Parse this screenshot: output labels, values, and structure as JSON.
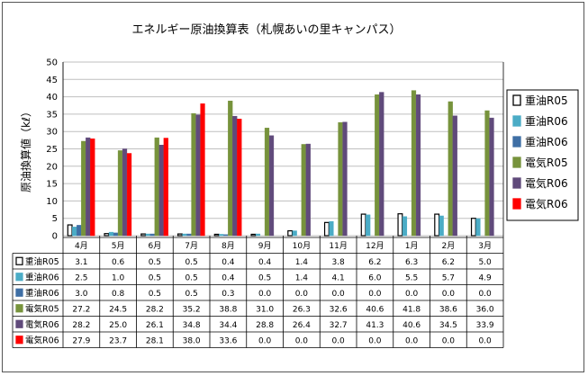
{
  "chart_data": {
    "type": "bar",
    "title": "エネルギー原油換算表（札幌あいの里キャンパス）",
    "ylabel": "原油換算値（kℓ）",
    "ylim": [
      0,
      50
    ],
    "yticks": [
      0,
      5,
      10,
      15,
      20,
      25,
      30,
      35,
      40,
      45,
      50
    ],
    "grid": true,
    "legend_position": "right",
    "categories": [
      "4月",
      "5月",
      "6月",
      "7月",
      "8月",
      "9月",
      "10月",
      "11月",
      "12月",
      "1月",
      "2月",
      "3月"
    ],
    "series": [
      {
        "name": "重油R05",
        "color": "#ffffff",
        "stroke": "#000000",
        "values": [
          3.1,
          0.6,
          0.5,
          0.5,
          0.4,
          0.4,
          1.4,
          3.8,
          6.2,
          6.3,
          6.2,
          5.0
        ]
      },
      {
        "name": "重油R06",
        "color": "#4bacc6",
        "stroke": "#4bacc6",
        "values": [
          2.5,
          1.0,
          0.5,
          0.5,
          0.4,
          0.5,
          1.4,
          4.1,
          6.0,
          5.5,
          5.7,
          4.9
        ]
      },
      {
        "name": "重油R06",
        "color": "#3f6fa5",
        "stroke": "#3f6fa5",
        "values": [
          3.0,
          0.8,
          0.5,
          0.5,
          0.3,
          0.0,
          0.0,
          0.0,
          0.0,
          0.0,
          0.0,
          0.0
        ]
      },
      {
        "name": "電気R05",
        "color": "#77933c",
        "stroke": "#77933c",
        "values": [
          27.2,
          24.5,
          28.2,
          35.2,
          38.8,
          31.0,
          26.3,
          32.6,
          40.6,
          41.8,
          38.6,
          36.0
        ]
      },
      {
        "name": "電気R06",
        "color": "#604a7b",
        "stroke": "#604a7b",
        "values": [
          28.2,
          25.0,
          26.1,
          34.8,
          34.4,
          28.8,
          26.4,
          32.7,
          41.3,
          40.6,
          34.5,
          33.9
        ]
      },
      {
        "name": "電気R06",
        "color": "#ff0000",
        "stroke": "#ff0000",
        "values": [
          27.9,
          23.7,
          28.1,
          38.0,
          33.6,
          0.0,
          0.0,
          0.0,
          0.0,
          0.0,
          0.0,
          0.0
        ]
      }
    ]
  }
}
